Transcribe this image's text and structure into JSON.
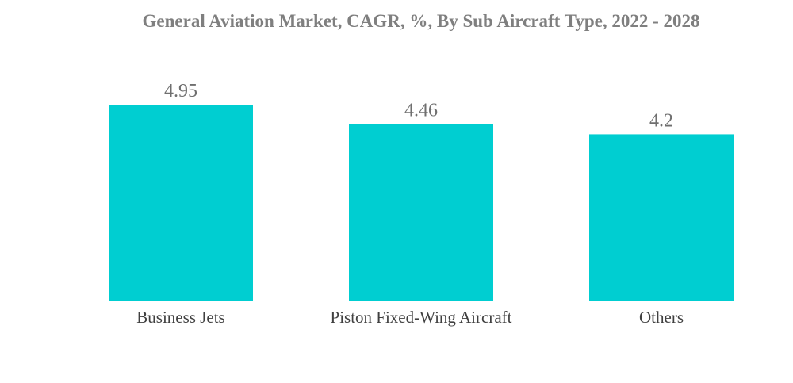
{
  "chart_data": {
    "type": "bar",
    "title": "General Aviation Market, CAGR, %, By Sub Aircraft Type, 2022 - 2028",
    "categories": [
      "Business Jets",
      "Piston Fixed-Wing Aircraft",
      "Others"
    ],
    "values": [
      4.95,
      4.46,
      4.2
    ],
    "value_labels": [
      "4.95",
      "4.46",
      "4.2"
    ],
    "xlabel": "",
    "ylabel": "",
    "ylim": [
      0,
      4.95
    ],
    "grid": false,
    "legend": "none",
    "bar_color": "#00CED1",
    "value_label_color": "#6f6f6f",
    "category_label_color": "#404040",
    "title_color": "#7f7f7f"
  }
}
